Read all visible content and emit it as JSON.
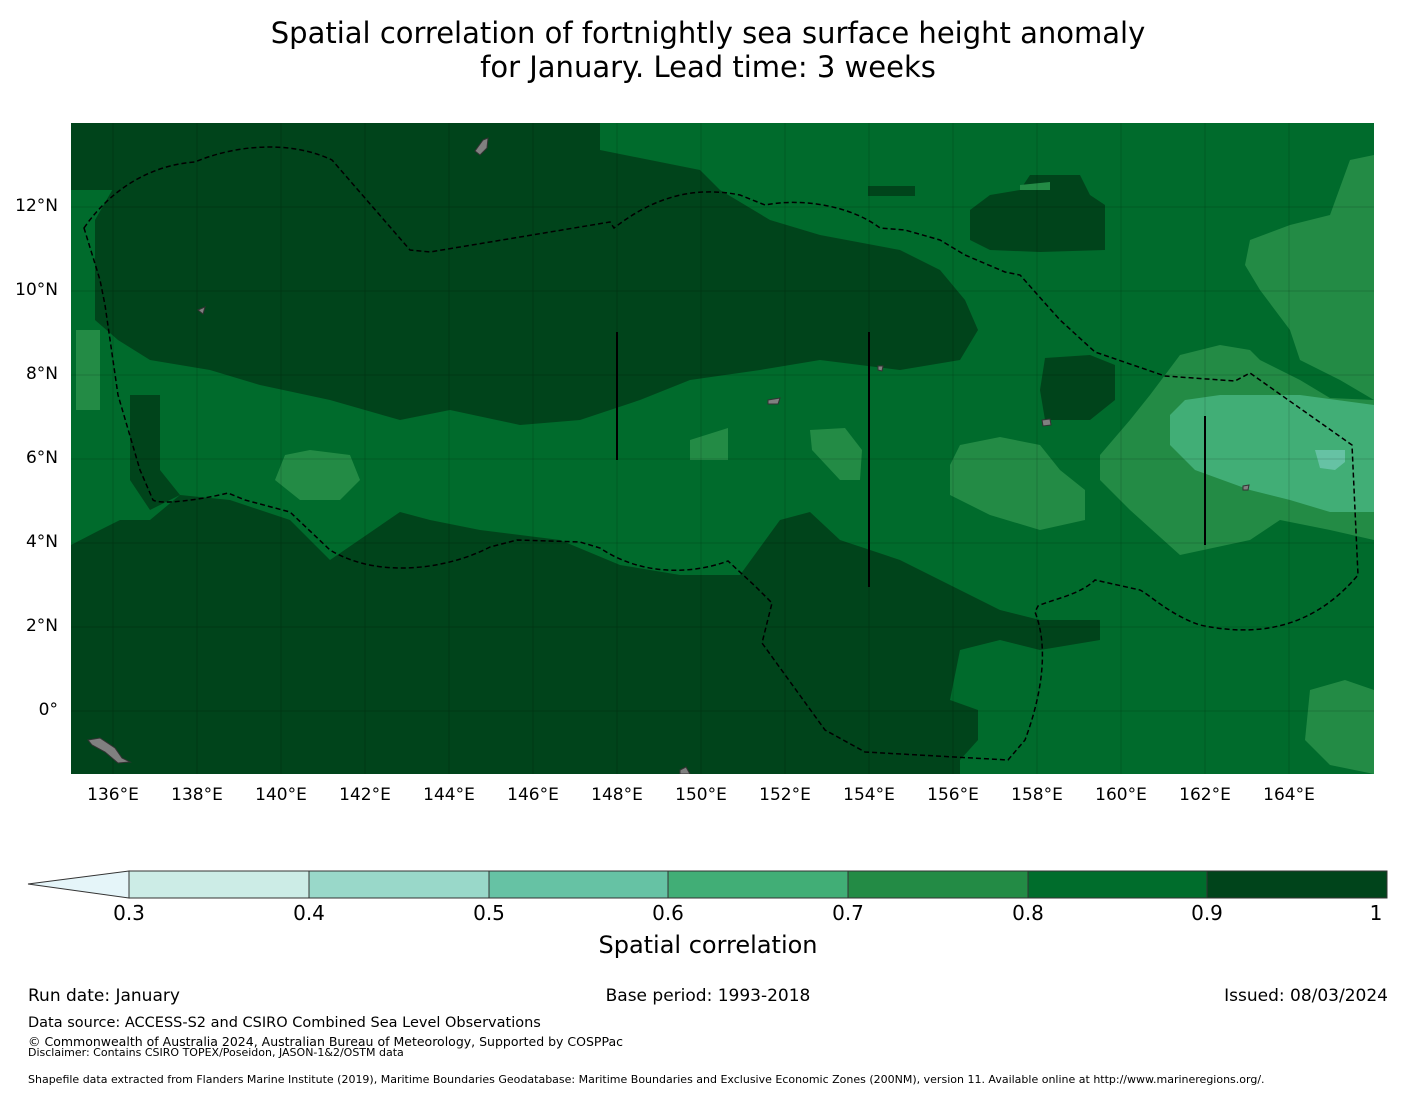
{
  "title": {
    "line1": "Spatial correlation of fortnightly sea surface height anomaly",
    "line2": "for January. Lead time: 3 weeks"
  },
  "map": {
    "x_ticks": [
      "136°E",
      "138°E",
      "140°E",
      "142°E",
      "144°E",
      "146°E",
      "148°E",
      "150°E",
      "152°E",
      "154°E",
      "156°E",
      "158°E",
      "160°E",
      "162°E",
      "164°E"
    ],
    "y_ticks": [
      "12°N",
      "10°N",
      "8°N",
      "6°N",
      "4°N",
      "2°N",
      "0°"
    ],
    "lon_range": [
      134.7,
      165.7
    ],
    "lat_range": [
      -1.5,
      14.0
    ],
    "ocean_color": "#006b2c",
    "land_color": "#808080",
    "boundary_style": "dashed"
  },
  "colorbar": {
    "levels": [
      "0.3",
      "0.4",
      "0.5",
      "0.6",
      "0.7",
      "0.8",
      "0.9",
      "1"
    ],
    "colors": [
      "#e5f5f9",
      "#ccece6",
      "#99d8c9",
      "#66c2a4",
      "#41ae76",
      "#238b45",
      "#006d2c",
      "#00441b"
    ],
    "label": "Spatial correlation"
  },
  "footer": {
    "run_date": "Run date: January",
    "base_period": "Base period: 1993-2018",
    "issued": "Issued: 08/03/2024",
    "data_source": "Data source: ACCESS-S2 and CSIRO Combined Sea Level Observations",
    "copyright": "© Commonwealth of Australia 2024, Australian Bureau of Meteorology, Supported by COSPPac",
    "disclaimer": "Disclaimer: Contains CSIRO TOPEX/Poseidon, JASON-1&2/OSTM data",
    "shapefile": "Shapefile data extracted from Flanders Marine Institute (2019), Maritime Boundaries Geodatabase: Maritime Boundaries and Exclusive Economic Zones (200NM), version 11. Available online at http://www.marineregions.org/."
  }
}
